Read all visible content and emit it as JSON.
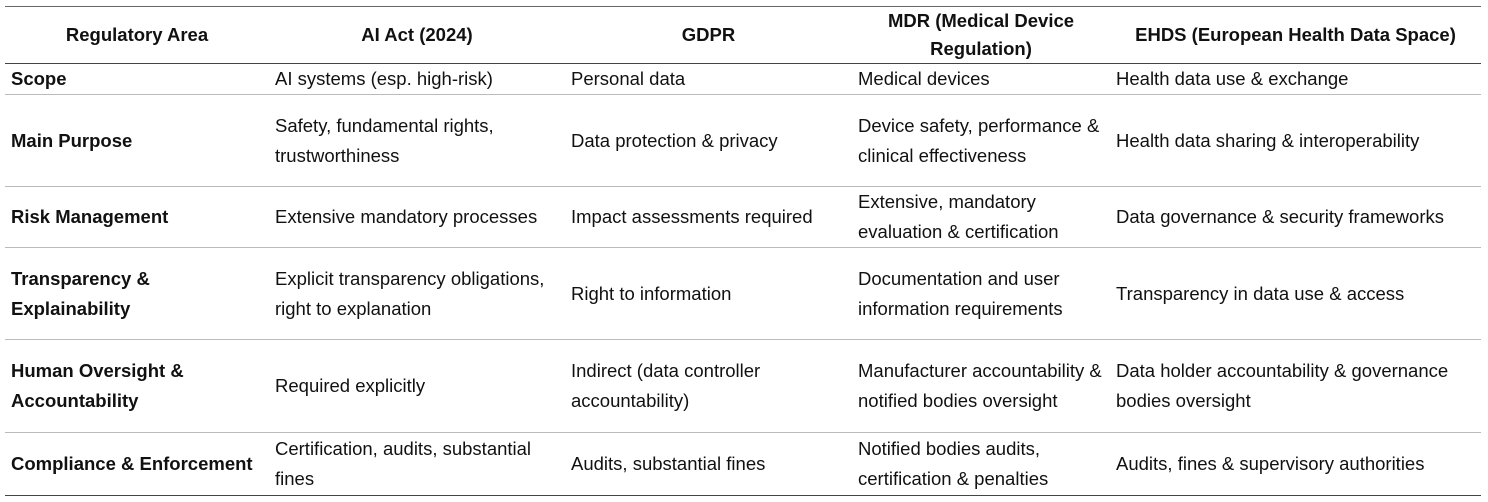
{
  "table": {
    "header": [
      "Regulatory Area",
      "AI Act (2024)",
      "GDPR",
      "MDR (Medical Device Regulation)",
      "EHDS (European Health Data Space)"
    ],
    "rows": [
      [
        "Scope",
        "AI systems (esp. high-risk)",
        "Personal data",
        "Medical devices",
        "Health data use & exchange"
      ],
      [
        "Main Purpose",
        "Safety, fundamental rights, trustworthiness",
        "Data protection & privacy",
        "Device safety, performance & clinical effectiveness",
        "Health data sharing & interoperability"
      ],
      [
        "Risk Management",
        "Extensive mandatory processes",
        "Impact assessments required",
        "Extensive, mandatory evaluation & certification",
        "Data governance & security frameworks"
      ],
      [
        "Transparency & Explainability",
        "Explicit transparency obligations, right to explanation",
        "Right to information",
        "Documentation and user information requirements",
        "Transparency in data use & access"
      ],
      [
        "Human Oversight & Accountability",
        "Required explicitly",
        "Indirect (data controller accountability)",
        "Manufacturer accountability & notified bodies oversight",
        "Data holder accountability & governance bodies oversight"
      ],
      [
        "Compliance & Enforcement",
        "Certification, audits, substantial fines",
        "Audits, substantial fines",
        "Notified bodies audits, certification & penalties",
        "Audits, fines & supervisory authorities"
      ]
    ]
  }
}
